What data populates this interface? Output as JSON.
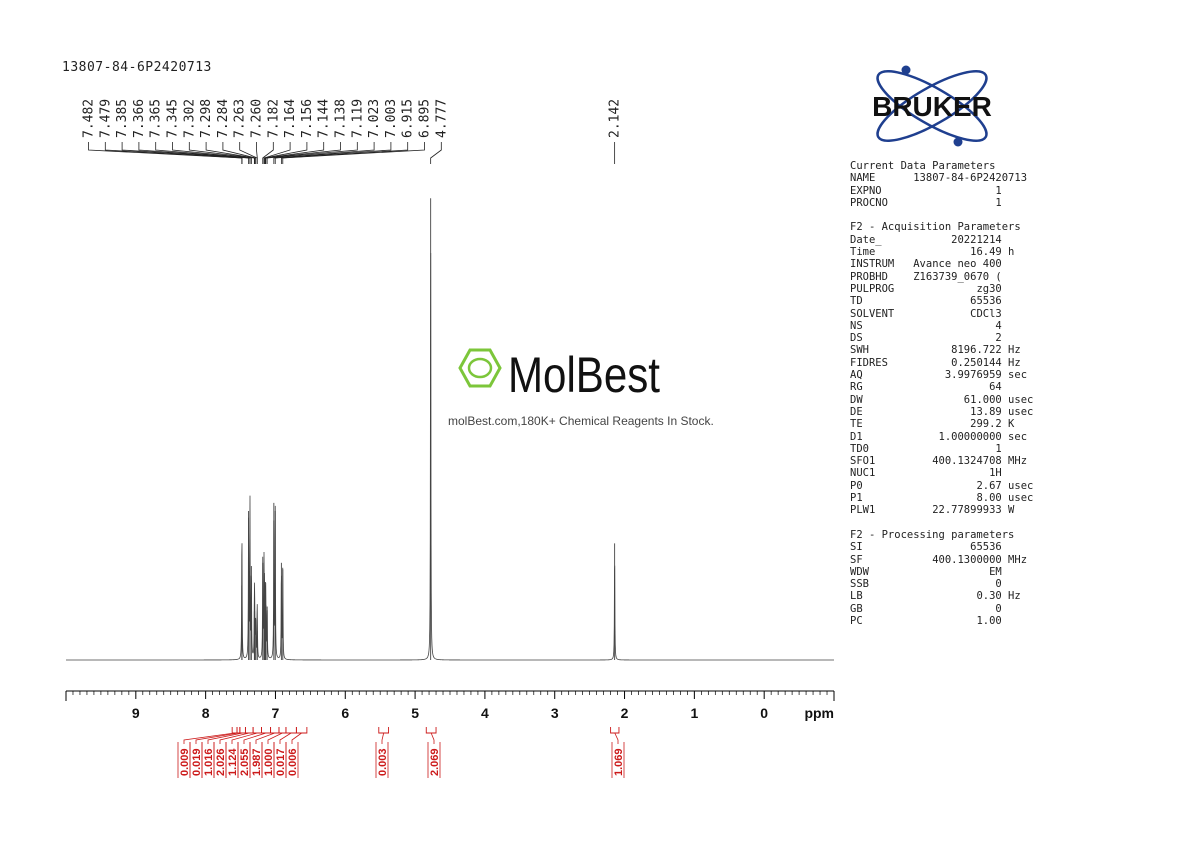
{
  "sample_name": "13807-84-6P2420713",
  "logo_text": "BRUKER",
  "watermark": {
    "brand": "MolBest",
    "tagline": "molBest.com,180K+ Chemical Reagents In Stock."
  },
  "parameters": [
    {
      "header": "Current Data Parameters",
      "rows": [
        {
          "k": "NAME",
          "v": "13807-84-6P2420713",
          "u": ""
        },
        {
          "k": "EXPNO",
          "v": "1",
          "u": ""
        },
        {
          "k": "PROCNO",
          "v": "1",
          "u": ""
        }
      ]
    },
    {
      "header": "F2 - Acquisition Parameters",
      "rows": [
        {
          "k": "Date_",
          "v": "20221214",
          "u": ""
        },
        {
          "k": "Time",
          "v": "16.49",
          "u": "h"
        },
        {
          "k": "INSTRUM",
          "v": "Avance neo 400",
          "u": ""
        },
        {
          "k": "PROBHD",
          "v": "Z163739_0670 (",
          "u": ""
        },
        {
          "k": "PULPROG",
          "v": "zg30",
          "u": ""
        },
        {
          "k": "TD",
          "v": "65536",
          "u": ""
        },
        {
          "k": "SOLVENT",
          "v": "CDCl3",
          "u": ""
        },
        {
          "k": "NS",
          "v": "4",
          "u": ""
        },
        {
          "k": "DS",
          "v": "2",
          "u": ""
        },
        {
          "k": "SWH",
          "v": "8196.722",
          "u": "Hz"
        },
        {
          "k": "FIDRES",
          "v": "0.250144",
          "u": "Hz"
        },
        {
          "k": "AQ",
          "v": "3.9976959",
          "u": "sec"
        },
        {
          "k": "RG",
          "v": "64",
          "u": ""
        },
        {
          "k": "DW",
          "v": "61.000",
          "u": "usec"
        },
        {
          "k": "DE",
          "v": "13.89",
          "u": "usec"
        },
        {
          "k": "TE",
          "v": "299.2",
          "u": "K"
        },
        {
          "k": "D1",
          "v": "1.00000000",
          "u": "sec"
        },
        {
          "k": "TD0",
          "v": "1",
          "u": ""
        },
        {
          "k": "SFO1",
          "v": "400.1324708",
          "u": "MHz"
        },
        {
          "k": "NUC1",
          "v": "1H",
          "u": ""
        },
        {
          "k": "P0",
          "v": "2.67",
          "u": "usec"
        },
        {
          "k": "P1",
          "v": "8.00",
          "u": "usec"
        },
        {
          "k": "PLW1",
          "v": "22.77899933",
          "u": "W"
        }
      ]
    },
    {
      "header": "F2 - Processing parameters",
      "rows": [
        {
          "k": "SI",
          "v": "65536",
          "u": ""
        },
        {
          "k": "SF",
          "v": "400.1300000",
          "u": "MHz"
        },
        {
          "k": "WDW",
          "v": "EM",
          "u": ""
        },
        {
          "k": "SSB",
          "v": "0",
          "u": ""
        },
        {
          "k": "LB",
          "v": "0.30",
          "u": "Hz"
        },
        {
          "k": "GB",
          "v": "0",
          "u": ""
        },
        {
          "k": "PC",
          "v": "1.00",
          "u": ""
        }
      ]
    }
  ],
  "chart_data": {
    "type": "line",
    "title": "",
    "xlabel": "ppm",
    "x_range": [
      10.0,
      -1.0
    ],
    "x_ticks": [
      9,
      8,
      7,
      6,
      5,
      4,
      3,
      2,
      1,
      0
    ],
    "peak_labels": [
      "7.482",
      "7.479",
      "7.385",
      "7.366",
      "7.365",
      "7.345",
      "7.302",
      "7.298",
      "7.284",
      "7.263",
      "7.260",
      "7.182",
      "7.164",
      "7.156",
      "7.144",
      "7.138",
      "7.119",
      "7.023",
      "7.003",
      "6.915",
      "6.895",
      "4.777",
      "2.142"
    ],
    "peaks": [
      {
        "ppm": 7.482,
        "h": 0.46
      },
      {
        "ppm": 7.479,
        "h": 0.44
      },
      {
        "ppm": 7.385,
        "h": 0.92
      },
      {
        "ppm": 7.366,
        "h": 0.55
      },
      {
        "ppm": 7.365,
        "h": 0.5
      },
      {
        "ppm": 7.345,
        "h": 0.58
      },
      {
        "ppm": 7.302,
        "h": 0.3
      },
      {
        "ppm": 7.298,
        "h": 0.3
      },
      {
        "ppm": 7.284,
        "h": 0.26
      },
      {
        "ppm": 7.263,
        "h": 0.22
      },
      {
        "ppm": 7.26,
        "h": 0.18
      },
      {
        "ppm": 7.182,
        "h": 0.6
      },
      {
        "ppm": 7.164,
        "h": 0.56
      },
      {
        "ppm": 7.156,
        "h": 0.4
      },
      {
        "ppm": 7.144,
        "h": 0.35
      },
      {
        "ppm": 7.138,
        "h": 0.34
      },
      {
        "ppm": 7.119,
        "h": 0.33
      },
      {
        "ppm": 7.023,
        "h": 0.97
      },
      {
        "ppm": 7.003,
        "h": 0.92
      },
      {
        "ppm": 6.915,
        "h": 0.6
      },
      {
        "ppm": 6.895,
        "h": 0.56
      },
      {
        "ppm": 4.777,
        "h": 2.85
      },
      {
        "ppm": 2.142,
        "h": 0.72
      }
    ],
    "integrals": [
      {
        "label": "0.009",
        "from": 7.62,
        "to": 7.55
      },
      {
        "label": "0.019",
        "from": 7.55,
        "to": 7.51
      },
      {
        "label": "1.016",
        "from": 7.51,
        "to": 7.43
      },
      {
        "label": "2.026",
        "from": 7.43,
        "to": 7.32
      },
      {
        "label": "1.124",
        "from": 7.32,
        "to": 7.2
      },
      {
        "label": "2.055",
        "from": 7.2,
        "to": 7.07
      },
      {
        "label": "1.987",
        "from": 7.07,
        "to": 6.95
      },
      {
        "label": "1.000",
        "from": 6.95,
        "to": 6.85
      },
      {
        "label": "0.017",
        "from": 6.85,
        "to": 6.7
      },
      {
        "label": "0.006",
        "from": 6.7,
        "to": 6.55
      },
      {
        "label": "0.003",
        "from": 5.52,
        "to": 5.38
      },
      {
        "label": "2.069",
        "from": 4.84,
        "to": 4.7
      },
      {
        "label": "1.069",
        "from": 2.2,
        "to": 2.08
      }
    ]
  },
  "colors": {
    "spectrum": "#444444",
    "integral": "#cc1a1a",
    "axis": "#000000",
    "logo_blue": "#1f3f8f",
    "molbest_green": "#7cc63a"
  }
}
